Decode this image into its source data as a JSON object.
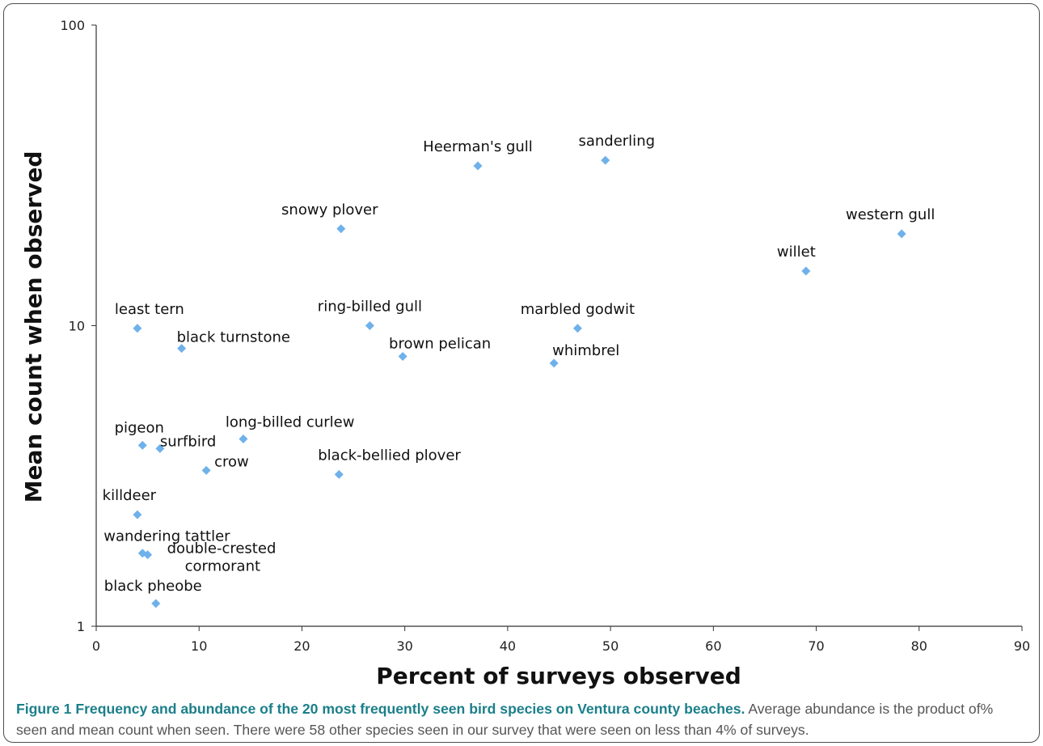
{
  "chart_data": {
    "type": "scatter",
    "xlabel": "Percent of surveys observed",
    "ylabel": "Mean count when observed",
    "xlim": [
      0,
      90
    ],
    "ylim": [
      1,
      100
    ],
    "yscale": "log",
    "x_ticks": [
      "0",
      "10",
      "20",
      "30",
      "40",
      "50",
      "60",
      "70",
      "80",
      "90"
    ],
    "y_ticks": [
      "1",
      "10",
      "100"
    ],
    "grid": false,
    "legend": "none",
    "marker": "diamond",
    "marker_color": "#6fb1ea",
    "points": [
      {
        "label": "Heerman's gull",
        "x": 37.1,
        "y": 34
      },
      {
        "label": "sanderling",
        "x": 49.5,
        "y": 35.5
      },
      {
        "label": "snowy plover",
        "x": 23.8,
        "y": 21
      },
      {
        "label": "western gull",
        "x": 78.3,
        "y": 20.2
      },
      {
        "label": "willet",
        "x": 69.0,
        "y": 15.2
      },
      {
        "label": "least tern",
        "x": 4.0,
        "y": 9.8
      },
      {
        "label": "ring-billed gull",
        "x": 26.6,
        "y": 10
      },
      {
        "label": "marbled godwit",
        "x": 46.8,
        "y": 9.8
      },
      {
        "label": "black turnstone",
        "x": 8.3,
        "y": 8.4
      },
      {
        "label": "brown pelican",
        "x": 29.8,
        "y": 7.9
      },
      {
        "label": "whimbrel",
        "x": 44.5,
        "y": 7.5
      },
      {
        "label": "long-billed curlew",
        "x": 14.3,
        "y": 4.2
      },
      {
        "label": "pigeon",
        "x": 4.5,
        "y": 4.0
      },
      {
        "label": "surfbird",
        "x": 6.2,
        "y": 3.9
      },
      {
        "label": "crow",
        "x": 10.7,
        "y": 3.3
      },
      {
        "label": "black-bellied plover",
        "x": 23.6,
        "y": 3.2
      },
      {
        "label": "killdeer",
        "x": 4.0,
        "y": 2.35
      },
      {
        "label": "wandering tattler",
        "x": 4.5,
        "y": 1.75
      },
      {
        "label": "double-crested cormorant",
        "x": 5.0,
        "y": 1.73
      },
      {
        "label": "black pheobe",
        "x": 5.8,
        "y": 1.19
      }
    ]
  },
  "caption": {
    "title": "Figure 1 Frequency and abundance of the 20 most frequently seen bird species on Ventura county beaches.",
    "text": "Average abundance is the product of% seen and mean count when seen. There were 58 other species seen in our survey that were seen on less than 4% of surveys."
  }
}
